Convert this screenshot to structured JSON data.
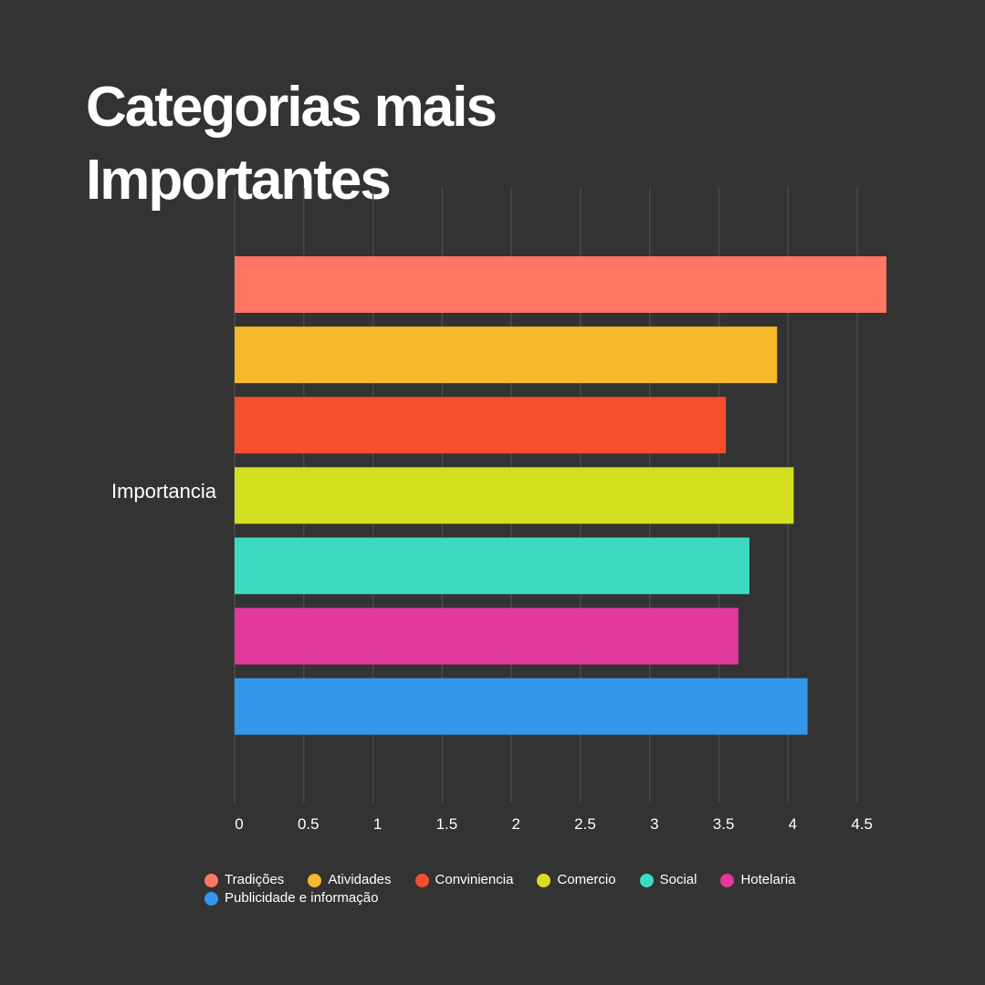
{
  "title_line1": "Categorias mais",
  "title_line2": "Importantes",
  "chart_data": {
    "type": "bar",
    "orientation": "horizontal",
    "categories": [
      "Importancia"
    ],
    "series": [
      {
        "name": "Tradições",
        "values": [
          4.71
        ],
        "color": "#ff7664"
      },
      {
        "name": "Atividades",
        "values": [
          3.92
        ],
        "color": "#f6b92b"
      },
      {
        "name": "Conviniencia",
        "values": [
          3.55
        ],
        "color": "#f64f2e"
      },
      {
        "name": "Comercio",
        "values": [
          4.04
        ],
        "color": "#d4e01f"
      },
      {
        "name": "Social",
        "values": [
          3.72
        ],
        "color": "#3ddcc2"
      },
      {
        "name": "Hotelaria",
        "values": [
          3.64
        ],
        "color": "#e3389c"
      },
      {
        "name": "Publicidade e informação",
        "values": [
          4.14
        ],
        "color": "#3397eb"
      }
    ],
    "xticks": [
      "0",
      "0.5",
      "1",
      "1.5",
      "2",
      "2.5",
      "3",
      "3.5",
      "4",
      "4.5"
    ],
    "xlim": [
      0,
      4.75
    ],
    "grid": true,
    "legend_position": "bottom"
  }
}
